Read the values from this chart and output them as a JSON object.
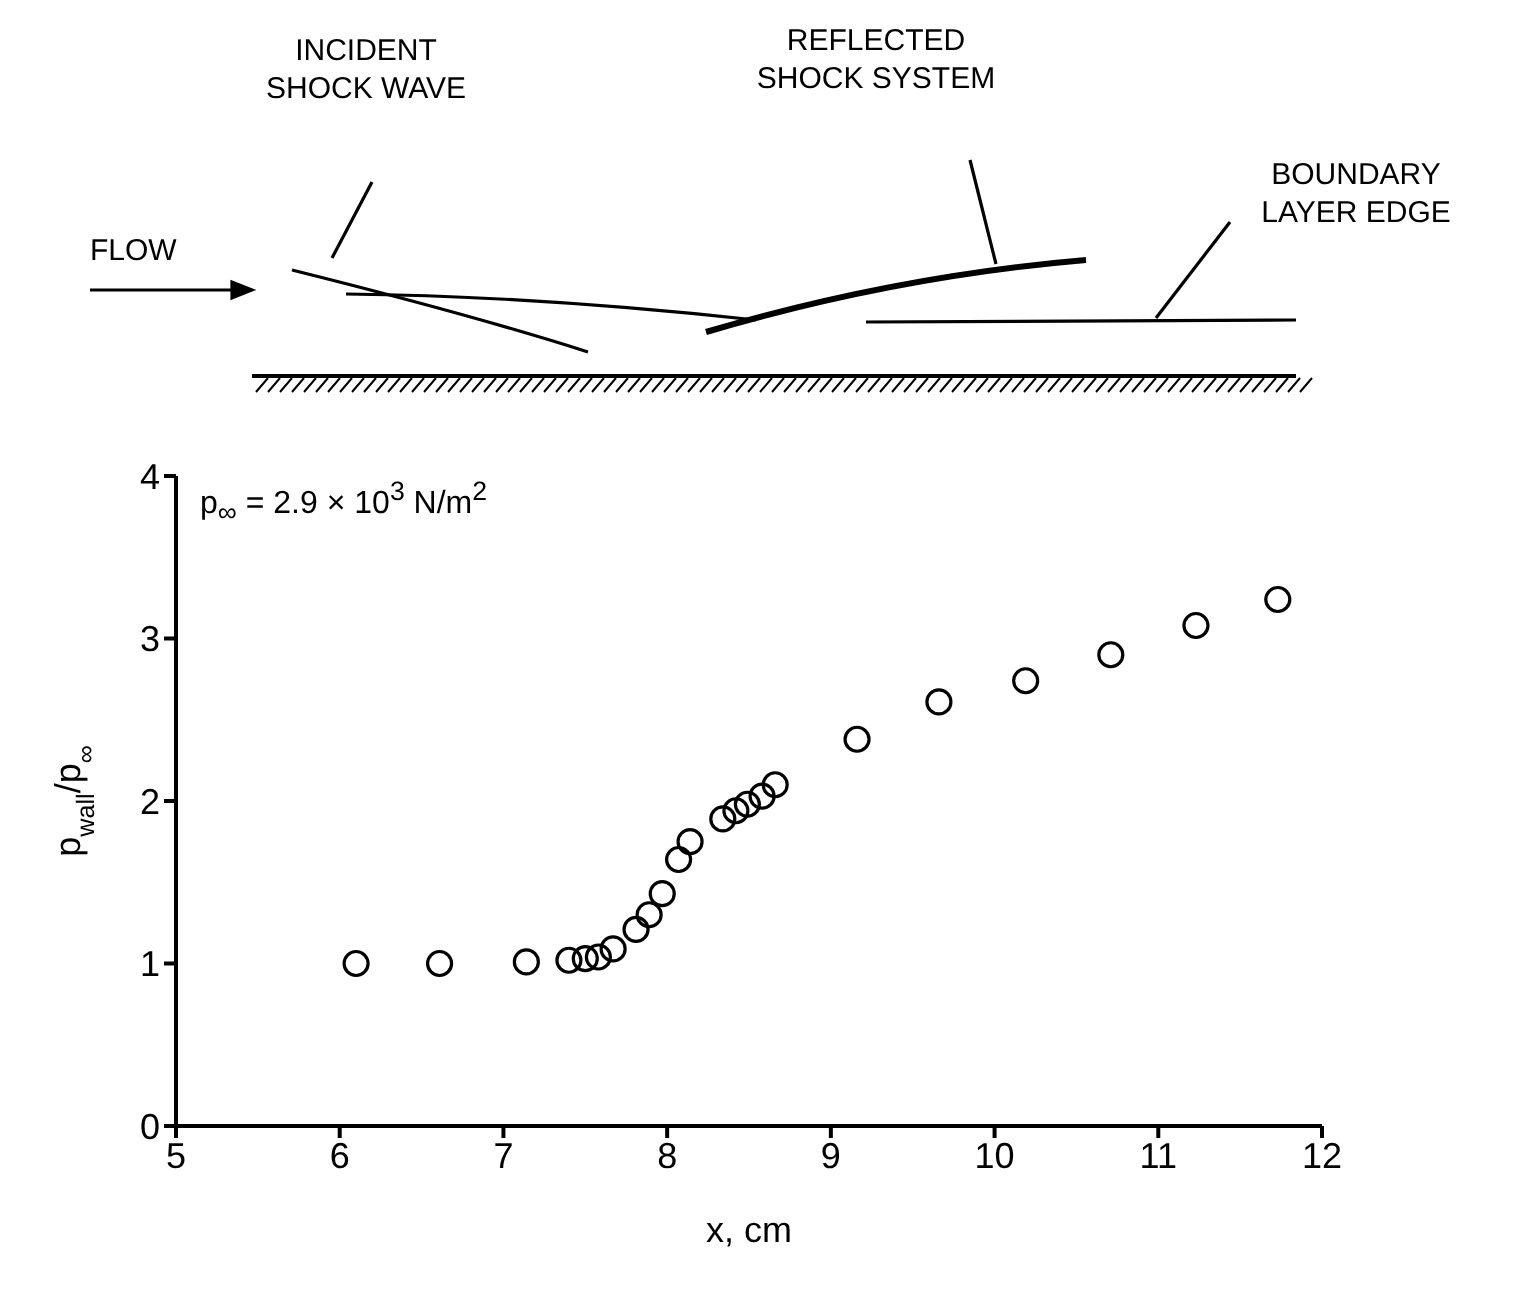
{
  "chart_data": {
    "type": "scatter",
    "xlabel": "x, cm",
    "ylabel": "p$_{wall}$/p$_{∞}$",
    "annotations": [
      "INCIDENT SHOCK WAVE",
      "REFLECTED SHOCK SYSTEM",
      "FLOW",
      "BOUNDARY LAYER EDGE",
      "p$_{∞}$ = 2.9 × 10$^{3}$ N/m$^{2}$"
    ],
    "x": [
      6.1,
      6.61,
      7.14,
      7.4,
      7.5,
      7.58,
      7.67,
      7.81,
      7.89,
      7.97,
      8.07,
      8.14,
      8.34,
      8.42,
      8.49,
      8.58,
      8.66,
      9.16,
      9.66,
      10.19,
      10.71,
      11.23,
      11.73
    ],
    "values": [
      1.0,
      1.0,
      1.01,
      1.02,
      1.03,
      1.04,
      1.09,
      1.21,
      1.3,
      1.43,
      1.64,
      1.75,
      1.89,
      1.94,
      1.98,
      2.03,
      2.1,
      2.38,
      2.61,
      2.74,
      2.9,
      3.08,
      3.24
    ],
    "color": "#000000",
    "marker": "circle",
    "xlim": [
      5,
      12
    ],
    "xticks": [
      5,
      6,
      7,
      8,
      9,
      10,
      11,
      12
    ],
    "ylim": [
      0,
      4
    ],
    "yticks": [
      0,
      1,
      2,
      3,
      4
    ],
    "grid": false,
    "legend": false
  }
}
